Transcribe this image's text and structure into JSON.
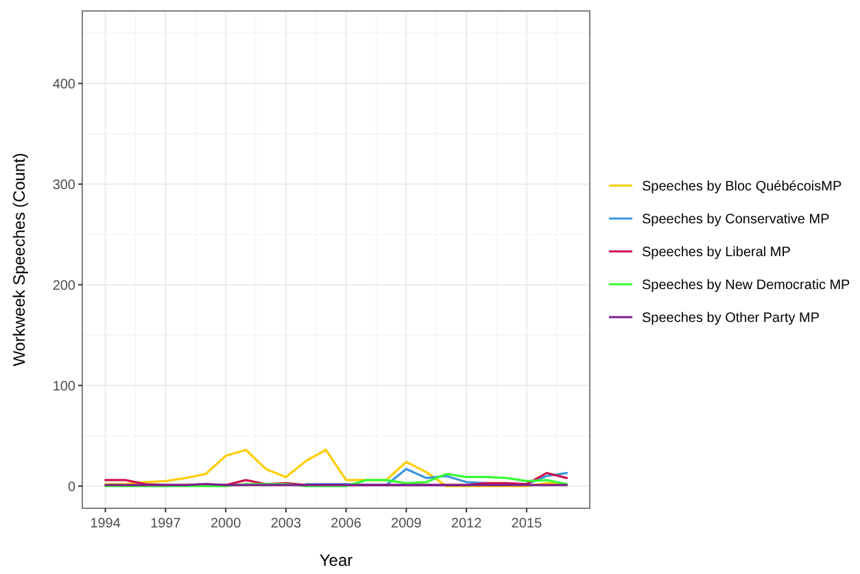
{
  "chart_data": {
    "type": "line",
    "xlabel": "Year",
    "ylabel": "Workweek Speeches (Count)",
    "x": [
      1994,
      1995,
      1996,
      1997,
      1998,
      1999,
      2000,
      2001,
      2002,
      2003,
      2004,
      2005,
      2006,
      2007,
      2008,
      2009,
      2010,
      2011,
      2012,
      2013,
      2014,
      2015,
      2016,
      2017
    ],
    "series": [
      {
        "name": "Speeches by Bloc QuébécoisMP",
        "color": "#ffcc00",
        "values": [
          2,
          2,
          4,
          5,
          8,
          12,
          30,
          36,
          17,
          9,
          25,
          36,
          6,
          6,
          6,
          24,
          14,
          0,
          0,
          0,
          0,
          0,
          3,
          2
        ]
      },
      {
        "name": "Speeches by Conservative MP",
        "color": "#3a96db",
        "values": [
          null,
          null,
          null,
          null,
          null,
          null,
          null,
          null,
          null,
          null,
          2,
          2,
          2,
          1,
          1,
          17,
          8,
          10,
          4,
          3,
          2,
          2,
          10,
          13
        ]
      },
      {
        "name": "Speeches by Liberal MP",
        "color": "#d0104c",
        "values": [
          6,
          6,
          2,
          1,
          1,
          2,
          1,
          6,
          2,
          3,
          1,
          1,
          1,
          1,
          1,
          1,
          1,
          1,
          1,
          3,
          3,
          2,
          13,
          8
        ]
      },
      {
        "name": "Speeches by New Democratic MP",
        "color": "#33ff33",
        "values": [
          0,
          0,
          0,
          0,
          0,
          0,
          0,
          2,
          2,
          2,
          0,
          0,
          0,
          6,
          6,
          3,
          4,
          12,
          9,
          9,
          8,
          5,
          6,
          2
        ]
      },
      {
        "name": "Speeches by Other Party MP",
        "color": "#7b1f8f",
        "values": [
          1,
          1,
          1,
          1,
          1,
          2,
          1,
          1,
          1,
          1,
          1,
          1,
          1,
          1,
          1,
          1,
          1,
          1,
          1,
          1,
          1,
          1,
          1,
          1
        ]
      }
    ],
    "xlim": [
      1992.85,
      2018.15
    ],
    "ylim": [
      -22,
      472
    ],
    "xticks": [
      1994,
      1997,
      2000,
      2003,
      2006,
      2009,
      2012,
      2015
    ],
    "yticks": [
      0,
      100,
      200,
      300,
      400
    ],
    "grid": true,
    "legend": "right",
    "line_style": "solid",
    "marker": "none"
  }
}
